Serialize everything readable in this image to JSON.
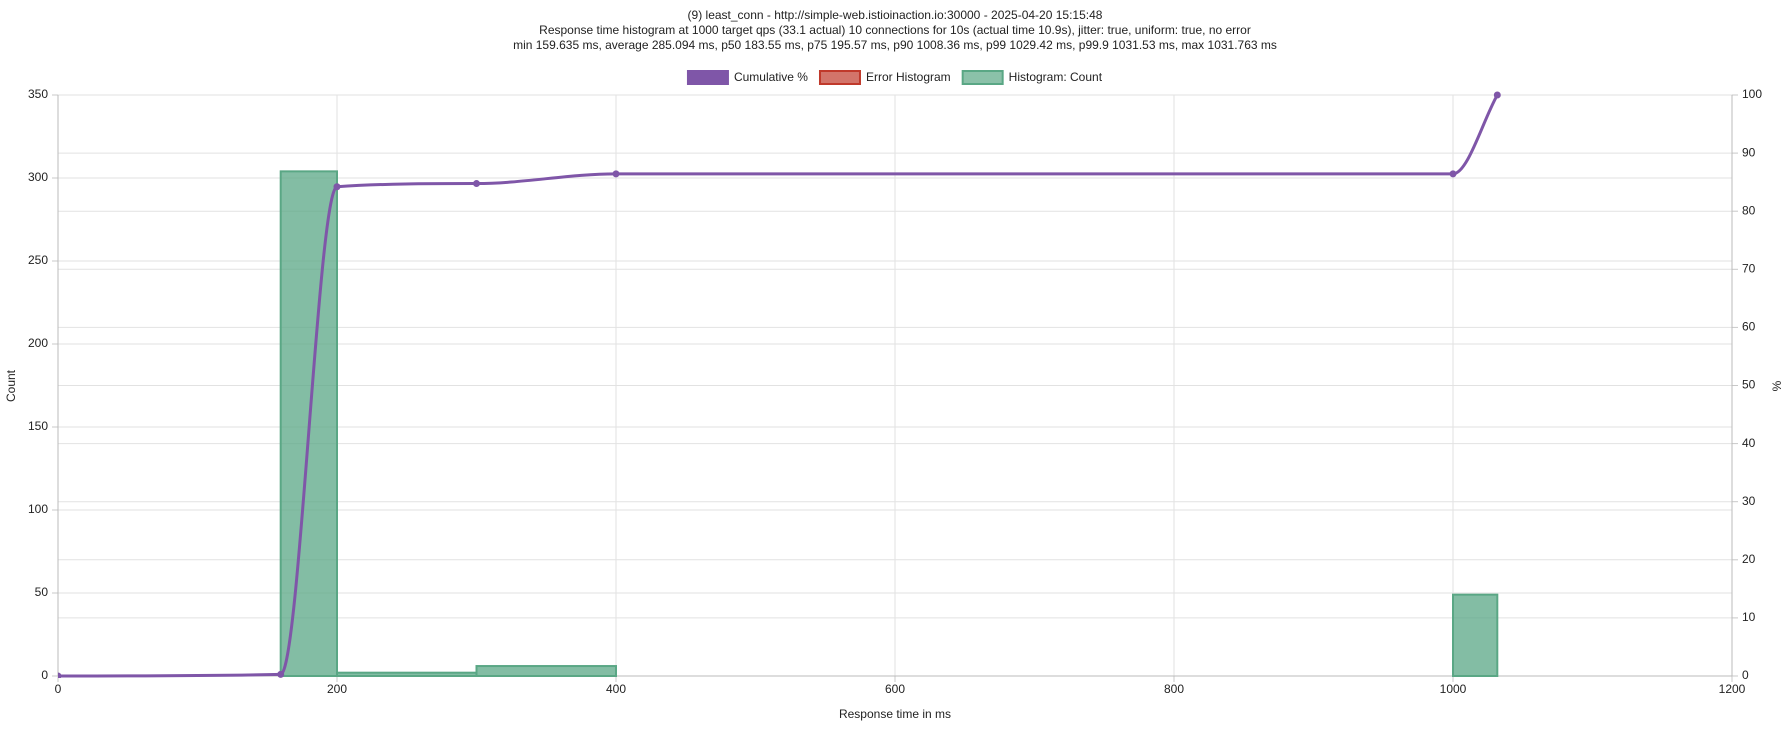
{
  "chart_data": {
    "type": "histogram",
    "title": "(9) least_conn - http://simple-web.istioinaction.io:30000 - 2025-04-20 15:15:48",
    "subtitle": [
      "Response time histogram at 1000 target qps (33.1 actual) 10 connections for 10s (actual time 10.9s), jitter: true, uniform: true, no error",
      "min 159.635 ms, average 285.094 ms, p50 183.55 ms, p75 195.57 ms, p90 1008.36 ms, p99 1029.42 ms, p99.9 1031.53 ms, max 1031.763 ms"
    ],
    "xlabel": "Response time in ms",
    "ylabel": "Count",
    "y2label": "%",
    "bins": [
      159.635,
      200,
      300,
      400,
      1000,
      1031.763
    ],
    "series": [
      {
        "name": "Cumulative %",
        "color": "#7f56a8",
        "axis": "y2",
        "x": [
          0,
          159.635,
          200,
          300,
          400,
          1000,
          1031.763
        ],
        "values": [
          0,
          0.28,
          84.21,
          84.76,
          86.43,
          86.43,
          100
        ]
      },
      {
        "name": "Error Histogram",
        "color": "#c0392b",
        "values": []
      },
      {
        "name": "Histogram: Count",
        "color": "#5aa785",
        "values": [
          304,
          2,
          6,
          0,
          49
        ]
      }
    ],
    "xlim": [
      0,
      1200
    ],
    "xticks": [
      0,
      200,
      400,
      600,
      800,
      1000,
      1200
    ],
    "ylim": [
      0,
      350
    ],
    "yticks": [
      0,
      50,
      100,
      150,
      200,
      250,
      300,
      350
    ],
    "y2lim": [
      0,
      100
    ],
    "y2ticks": [
      0,
      10,
      20,
      30,
      40,
      50,
      60,
      70,
      80,
      90,
      100
    ],
    "grid": true
  }
}
